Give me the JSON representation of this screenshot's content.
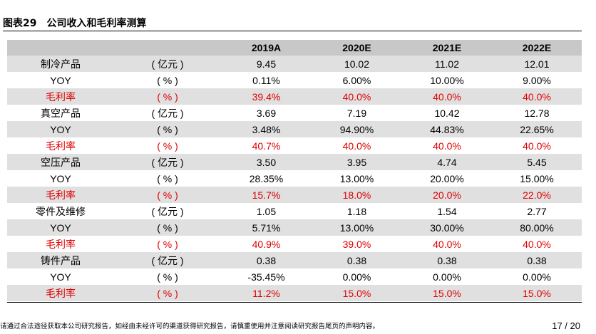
{
  "title": "图表29　公司收入和毛利率测算",
  "table": {
    "headers": [
      "",
      "",
      "2019A",
      "2020E",
      "2021E",
      "2022E"
    ],
    "rows": [
      {
        "label": "制冷产品",
        "unit": "( 亿元 )",
        "values": [
          "9.45",
          "10.02",
          "11.02",
          "12.01"
        ]
      },
      {
        "label": "YOY",
        "unit": "( % )",
        "values": [
          "0.11%",
          "6.00%",
          "10.00%",
          "9.00%"
        ]
      },
      {
        "label": "毛利率",
        "unit": "( % )",
        "values": [
          "39.4%",
          "40.0%",
          "40.0%",
          "40.0%"
        ]
      },
      {
        "label": "真空产品",
        "unit": "( 亿元 )",
        "values": [
          "3.69",
          "7.19",
          "10.42",
          "12.78"
        ]
      },
      {
        "label": "YOY",
        "unit": "( % )",
        "values": [
          "3.48%",
          "94.90%",
          "44.83%",
          "22.65%"
        ]
      },
      {
        "label": "毛利率",
        "unit": "( % )",
        "values": [
          "40.7%",
          "40.0%",
          "40.0%",
          "40.0%"
        ]
      },
      {
        "label": "空压产品",
        "unit": "( 亿元 )",
        "values": [
          "3.50",
          "3.95",
          "4.74",
          "5.45"
        ]
      },
      {
        "label": "YOY",
        "unit": "( % )",
        "values": [
          "28.35%",
          "13.00%",
          "20.00%",
          "15.00%"
        ]
      },
      {
        "label": "毛利率",
        "unit": "( % )",
        "values": [
          "15.7%",
          "18.0%",
          "20.0%",
          "22.0%"
        ]
      },
      {
        "label": "零件及维修",
        "unit": "( 亿元 )",
        "values": [
          "1.05",
          "1.18",
          "1.54",
          "2.77"
        ]
      },
      {
        "label": "YOY",
        "unit": "( % )",
        "values": [
          "5.71%",
          "13.00%",
          "30.00%",
          "80.00%"
        ]
      },
      {
        "label": "毛利率",
        "unit": "( % )",
        "values": [
          "40.9%",
          "39.0%",
          "40.0%",
          "40.0%"
        ]
      },
      {
        "label": "铸件产品",
        "unit": "( 亿元 )",
        "values": [
          "0.38",
          "0.38",
          "0.38",
          "0.38"
        ]
      },
      {
        "label": "YOY",
        "unit": "( % )",
        "values": [
          "-35.45%",
          "0.00%",
          "0.00%",
          "0.00%"
        ]
      },
      {
        "label": "毛利率",
        "unit": "( % )",
        "values": [
          "11.2%",
          "15.0%",
          "15.0%",
          "15.0%"
        ]
      }
    ]
  },
  "footer": {
    "disclaimer": "请通过合法途径获取本公司研究报告，如经由未经许可的渠道获得研究报告，请慎重使用并注意阅读研究报告尾页的声明内容。",
    "page": "17 / 20"
  },
  "colors": {
    "header_bg": "#c8c8c8",
    "row_shade": "#e0e0e0",
    "margin_text": "#e00000"
  }
}
